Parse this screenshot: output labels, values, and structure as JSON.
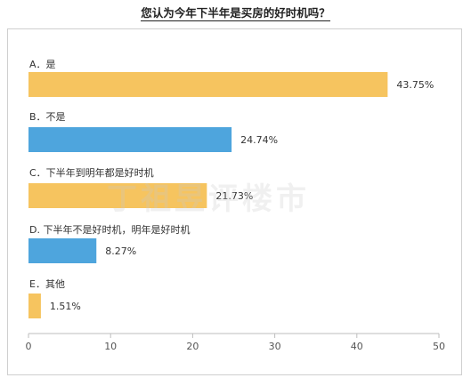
{
  "title": "您认为今年下半年是买房的好时机吗？",
  "watermark": "丁祖昱评楼市",
  "colors": {
    "gold": "#f6c45f",
    "blue": "#4ea5dd",
    "axis": "#bdbdbd",
    "text": "#333333"
  },
  "chart_data": {
    "type": "bar",
    "orientation": "horizontal",
    "categories": [
      "A．是",
      "B．不是",
      "C．下半年到明年都是好时机",
      "D. 下半年不是好时机，明年是好时机",
      "E．其他"
    ],
    "values": [
      43.75,
      24.74,
      21.73,
      8.27,
      1.51
    ],
    "value_labels": [
      "43.75%",
      "24.74%",
      "21.73%",
      "8.27%",
      "1.51%"
    ],
    "bar_colors": [
      "#f6c45f",
      "#4ea5dd",
      "#f6c45f",
      "#4ea5dd",
      "#f6c45f"
    ],
    "xlim": [
      0,
      50
    ],
    "xticks": [
      0,
      10,
      20,
      30,
      40,
      50
    ],
    "grid": false,
    "legend": "none"
  }
}
